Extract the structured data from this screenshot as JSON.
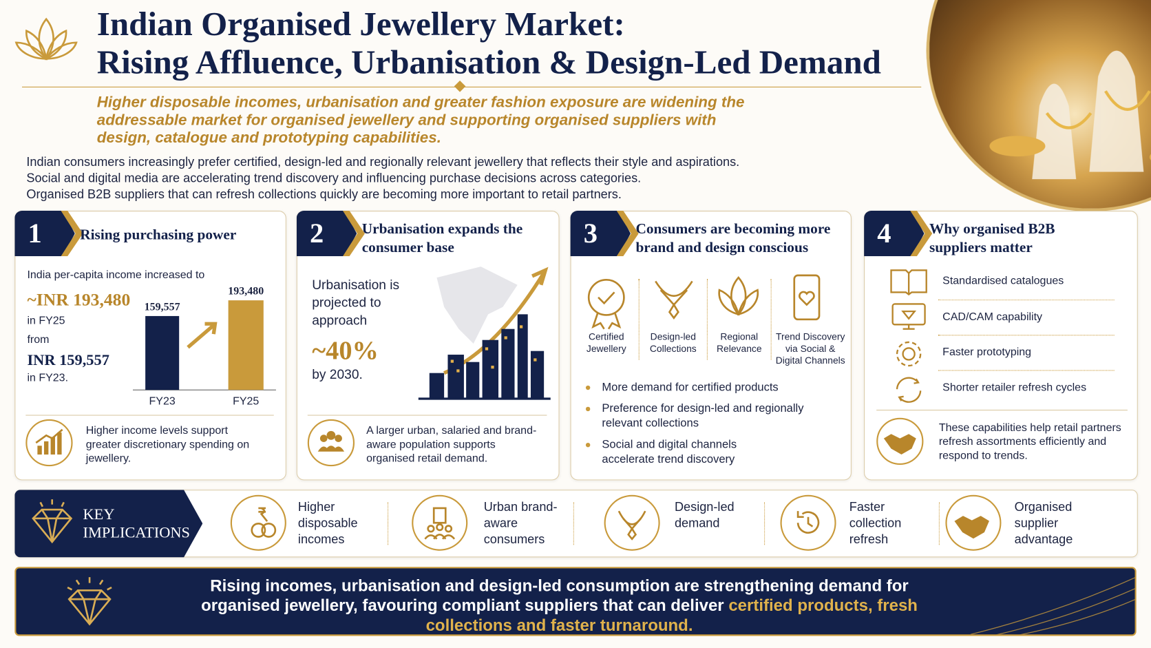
{
  "header": {
    "title_line1": "Indian Organised Jewellery Market:",
    "title_line2": "Rising Affluence, Urbanisation & Design-Led Demand",
    "subtitle": "Higher disposable incomes, urbanisation and greater fashion exposure are widening the addressable market for organised jewellery and supporting organised suppliers with design, catalogue and prototyping capabilities.",
    "intro": [
      "Indian consumers increasingly prefer certified, design-led and regionally relevant jewellery that reflects their style and aspirations.",
      "Social and digital media are accelerating trend discovery and influencing purchase decisions across categories.",
      "Organised B2B suppliers that can refresh collections quickly are becoming more important to retail partners."
    ]
  },
  "panels": [
    {
      "number": "1",
      "title": "Rising purchasing power",
      "lines": [
        "India per-capita income increased to",
        "~INR 193,480",
        "in FY25",
        "from",
        "INR 159,557",
        "in FY23."
      ],
      "chart": {
        "categories": [
          "FY23",
          "FY25"
        ],
        "values": [
          159557,
          193480
        ],
        "value_labels": [
          "159,557",
          "193,480"
        ]
      },
      "footer": "Higher income levels support greater discretionary spending on jewellery."
    },
    {
      "number": "2",
      "title": "Urbanisation expands the consumer base",
      "lines": [
        "Urbanisation is projected to approach",
        "~40%",
        "by 2030."
      ],
      "footer": "A larger urban, salaried and brand-aware population supports organised retail demand."
    },
    {
      "number": "3",
      "title": "Consumers are becoming more brand and design conscious",
      "icons": [
        "Certified Jewellery",
        "Design-led Collections",
        "Regional Relevance",
        "Trend Discovery via Social & Digital Channels"
      ],
      "bullets": [
        "More demand for certified products",
        "Preference for design-led and regionally relevant collections",
        "Social and digital channels accelerate trend discovery"
      ]
    },
    {
      "number": "4",
      "title": "Why organised B2B suppliers matter",
      "items": [
        "Standardised catalogues",
        "CAD/CAM capability",
        "Faster prototyping",
        "Shorter retailer refresh cycles"
      ],
      "footer": "These capabilities help retail partners refresh assortments efficiently and respond to trends."
    }
  ],
  "implications": {
    "heading": "KEY IMPLICATIONS",
    "items": [
      "Higher disposable incomes",
      "Urban brand-aware consumers",
      "Design-led demand",
      "Faster collection refresh",
      "Organised supplier advantage"
    ]
  },
  "conclusion": {
    "text": "Rising incomes, urbanisation and design-led consumption are strengthening demand for organised jewellery, favouring compliant suppliers that can deliver",
    "highlight": "certified products, fresh collections and faster turnaround."
  }
}
